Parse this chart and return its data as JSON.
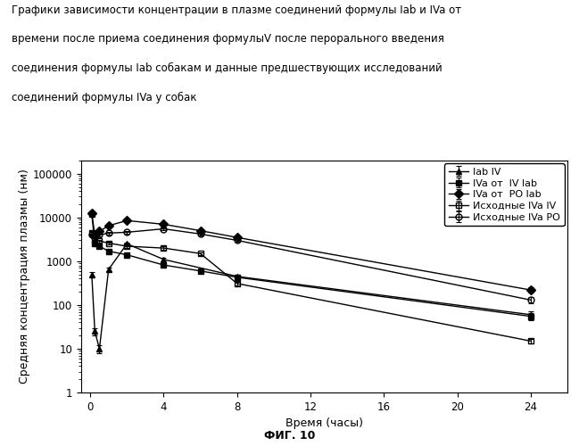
{
  "title_lines": [
    "Графики зависимости концентрации в плазме соединений формулы Iab и IVa от",
    "времени после приема соединения формулыV после перорального введения",
    "соединения формулы Iab собакам и данные предшествующих исследований",
    "соединений формулы IVa у собак"
  ],
  "xlabel": "Время (часы)",
  "ylabel": "Средняя концентрация плазмы (нм)",
  "fig_label": "ФИГ. 10",
  "series": [
    {
      "label": "Iab IV",
      "marker": "^",
      "color": "#000000",
      "fillstyle": "full",
      "x": [
        0.083,
        0.25,
        0.5,
        1.0,
        2.0,
        4.0,
        8.0,
        24.0
      ],
      "y": [
        500,
        25,
        10,
        650,
        2500,
        1100,
        450,
        60
      ],
      "yerr": [
        60,
        5,
        2,
        70,
        180,
        100,
        50,
        12
      ]
    },
    {
      "label": "IVa от  IV lab",
      "marker": "s",
      "color": "#000000",
      "fillstyle": "full",
      "x": [
        0.083,
        0.25,
        0.5,
        1.0,
        2.0,
        4.0,
        6.0,
        8.0,
        24.0
      ],
      "y": [
        12000,
        2500,
        2200,
        1700,
        1400,
        820,
        600,
        430,
        55
      ],
      "yerr": [
        700,
        200,
        180,
        130,
        100,
        80,
        60,
        45,
        10
      ]
    },
    {
      "label": "IVa от  PO lab",
      "marker": "D",
      "color": "#000000",
      "fillstyle": "full",
      "x": [
        0.083,
        0.25,
        0.5,
        1.0,
        2.0,
        4.0,
        6.0,
        8.0,
        24.0
      ],
      "y": [
        12500,
        4000,
        4800,
        6500,
        8500,
        7000,
        5000,
        3500,
        220
      ],
      "yerr": [
        900,
        350,
        400,
        500,
        650,
        550,
        400,
        280,
        30
      ]
    },
    {
      "label": "Исходные IVa IV",
      "marker": "s",
      "color": "#000000",
      "fillstyle": "none",
      "x": [
        0.083,
        0.25,
        0.5,
        1.0,
        2.0,
        4.0,
        6.0,
        8.0,
        24.0
      ],
      "y": [
        4500,
        3200,
        2900,
        2600,
        2200,
        2000,
        1500,
        310,
        15
      ],
      "yerr": [
        350,
        250,
        220,
        200,
        170,
        160,
        120,
        35,
        2
      ]
    },
    {
      "label": "Исходные IVa PO",
      "marker": "o",
      "color": "#000000",
      "fillstyle": "none",
      "x": [
        0.083,
        0.25,
        0.5,
        1.0,
        2.0,
        4.0,
        6.0,
        8.0,
        24.0
      ],
      "y": [
        4000,
        3600,
        4000,
        4400,
        4600,
        5500,
        4200,
        3000,
        130
      ],
      "yerr": [
        300,
        300,
        330,
        360,
        380,
        440,
        350,
        250,
        20
      ]
    }
  ],
  "xlim": [
    -0.5,
    26
  ],
  "ylim": [
    1,
    200000
  ],
  "xticks": [
    0,
    4,
    8,
    12,
    16,
    20,
    24
  ],
  "yticks": [
    1,
    10,
    100,
    1000,
    10000,
    100000
  ],
  "ytick_labels": [
    "1",
    "10",
    "100",
    "1000",
    "10000",
    "100000"
  ],
  "background_color": "#ffffff",
  "title_fontsize": 8.5,
  "axis_fontsize": 9,
  "tick_fontsize": 8.5,
  "legend_fontsize": 8,
  "fig_label_fontsize": 9
}
